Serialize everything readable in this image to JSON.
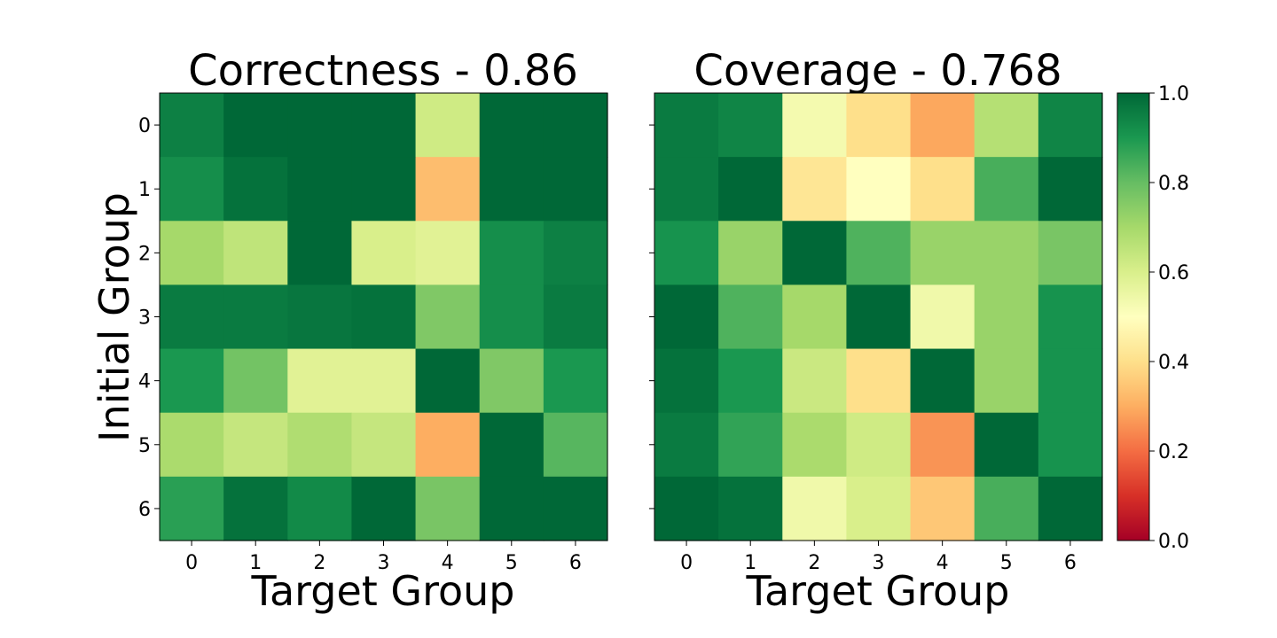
{
  "chart_data": [
    {
      "type": "heatmap",
      "title": "Correctness - 0.86",
      "xlabel": "Target Group",
      "ylabel": "Initial Group",
      "x_ticks": [
        "0",
        "1",
        "2",
        "3",
        "4",
        "5",
        "6"
      ],
      "y_ticks": [
        "0",
        "1",
        "2",
        "3",
        "4",
        "5",
        "6"
      ],
      "values": [
        [
          0.95,
          1.0,
          1.0,
          1.0,
          0.62,
          1.0,
          1.0
        ],
        [
          0.92,
          0.98,
          1.0,
          1.0,
          0.33,
          1.0,
          1.0
        ],
        [
          0.7,
          0.65,
          1.0,
          0.6,
          0.58,
          0.92,
          0.95
        ],
        [
          0.96,
          0.96,
          0.97,
          0.98,
          0.76,
          0.92,
          0.96
        ],
        [
          0.9,
          0.78,
          0.58,
          0.58,
          1.0,
          0.76,
          0.9
        ],
        [
          0.69,
          0.64,
          0.68,
          0.64,
          0.3,
          1.0,
          0.82
        ],
        [
          0.88,
          0.98,
          0.93,
          1.0,
          0.77,
          1.0,
          1.0
        ]
      ]
    },
    {
      "type": "heatmap",
      "title": "Coverage - 0.768",
      "xlabel": "Target Group",
      "ylabel": "",
      "x_ticks": [
        "0",
        "1",
        "2",
        "3",
        "4",
        "5",
        "6"
      ],
      "y_ticks": [
        "0",
        "1",
        "2",
        "3",
        "4",
        "5",
        "6"
      ],
      "values": [
        [
          0.96,
          0.94,
          0.53,
          0.4,
          0.29,
          0.67,
          0.94
        ],
        [
          0.96,
          1.0,
          0.42,
          0.5,
          0.4,
          0.84,
          1.0
        ],
        [
          0.91,
          0.72,
          1.0,
          0.83,
          0.72,
          0.72,
          0.77
        ],
        [
          1.0,
          0.83,
          0.7,
          1.0,
          0.54,
          0.72,
          0.91
        ],
        [
          0.98,
          0.9,
          0.63,
          0.4,
          1.0,
          0.72,
          0.91
        ],
        [
          0.96,
          0.87,
          0.69,
          0.62,
          0.26,
          1.0,
          0.91
        ],
        [
          1.0,
          0.98,
          0.54,
          0.6,
          0.35,
          0.84,
          1.0
        ]
      ]
    }
  ],
  "colorbar": {
    "colormap": "RdYlGn",
    "range": [
      0.0,
      1.0
    ],
    "ticks": [
      "0.0",
      "0.2",
      "0.4",
      "0.6",
      "0.8",
      "1.0"
    ]
  }
}
